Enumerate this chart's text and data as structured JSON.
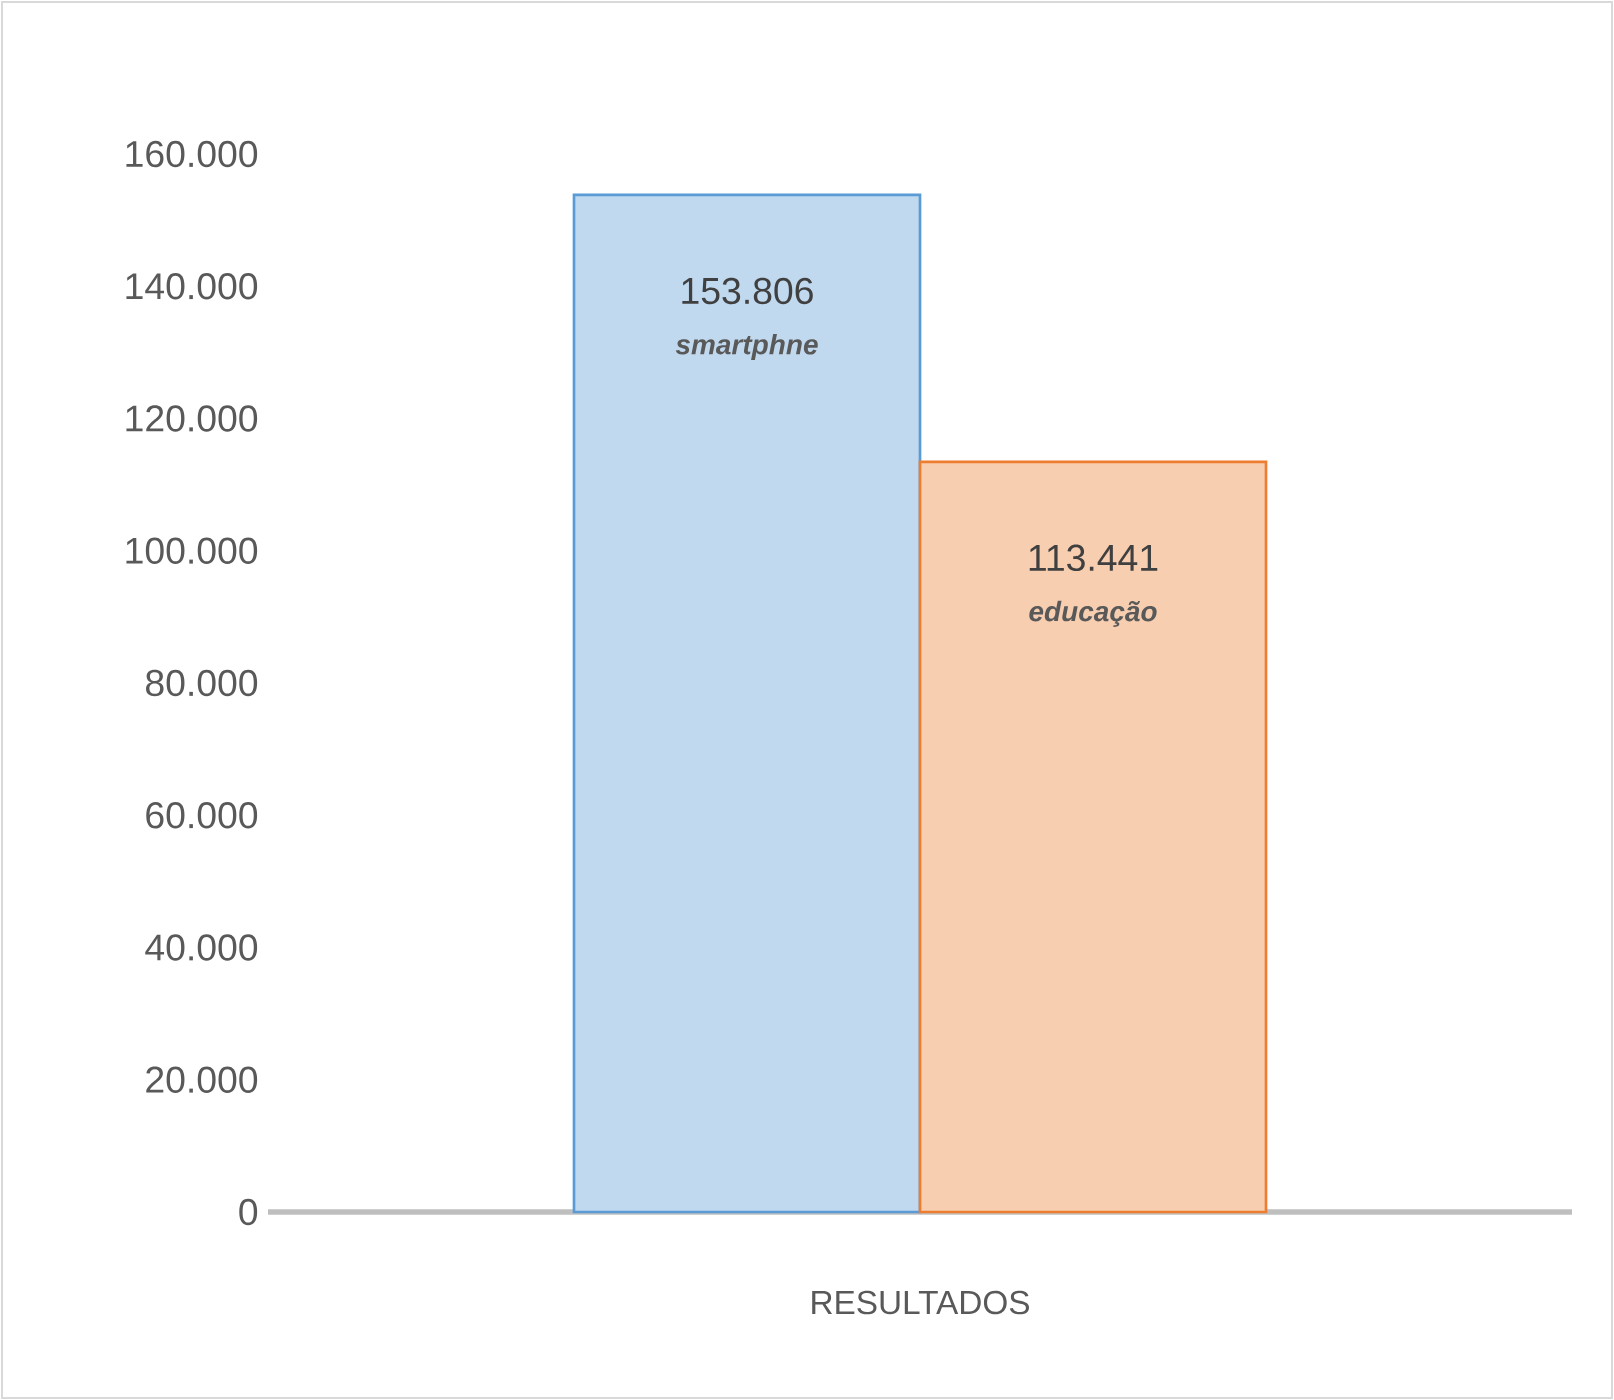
{
  "chart_data": {
    "type": "bar",
    "categories": [
      "RESULTADOS"
    ],
    "series": [
      {
        "name": "smartphne",
        "color": "#5b9bd5",
        "values": [
          153806
        ],
        "value_labels": [
          "153.806"
        ]
      },
      {
        "name": "educação",
        "color": "#ed7d31",
        "values": [
          113441
        ],
        "value_labels": [
          "113.441"
        ]
      }
    ],
    "ylim": [
      0,
      160000
    ],
    "yticks": [
      {
        "value": 0,
        "label": "0"
      },
      {
        "value": 20000,
        "label": "20.000"
      },
      {
        "value": 40000,
        "label": "40.000"
      },
      {
        "value": 60000,
        "label": "60.000"
      },
      {
        "value": 80000,
        "label": "80.000"
      },
      {
        "value": 100000,
        "label": "100.000"
      },
      {
        "value": 120000,
        "label": "120.000"
      },
      {
        "value": 140000,
        "label": "140.000"
      },
      {
        "value": 160000,
        "label": "160.000"
      }
    ]
  }
}
